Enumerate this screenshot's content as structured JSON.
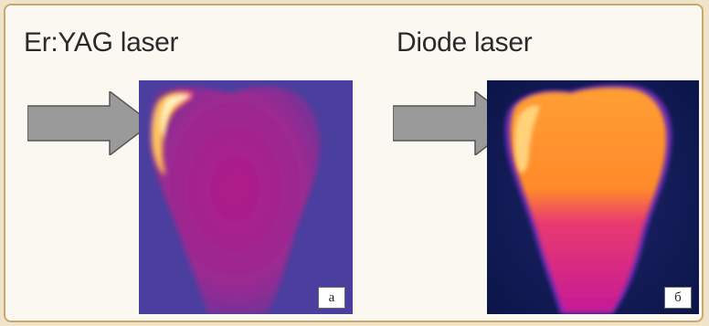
{
  "figure": {
    "left": {
      "title": "Er:YAG laser",
      "panel_label": "а"
    },
    "right": {
      "title": "Diode laser",
      "panel_label": "б"
    }
  },
  "colors": {
    "frame_border": "#c9a86b",
    "page_background": "#efe3c9",
    "arrow_fill": "#9a9a9a",
    "thermal_cold_left": "#4a3f9e",
    "thermal_cold_right": "#101a55",
    "thermal_warm": "#c0148a",
    "thermal_hot": "#ff9a30"
  }
}
